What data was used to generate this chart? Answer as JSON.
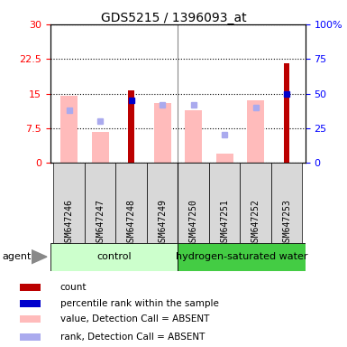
{
  "title": "GDS5215 / 1396093_at",
  "samples": [
    "GSM647246",
    "GSM647247",
    "GSM647248",
    "GSM647249",
    "GSM647250",
    "GSM647251",
    "GSM647252",
    "GSM647253"
  ],
  "ylim_left": [
    0,
    30
  ],
  "ylim_right": [
    0,
    100
  ],
  "yticks_left": [
    0,
    7.5,
    15,
    22.5,
    30
  ],
  "yticks_right": [
    0,
    25,
    50,
    75,
    100
  ],
  "ytick_labels_right": [
    "0",
    "25",
    "50",
    "75",
    "100%"
  ],
  "bar_count_values": [
    0,
    0,
    15.8,
    0,
    0,
    0,
    0,
    21.5
  ],
  "bar_count_color": "#bb0000",
  "value_absent": [
    14.5,
    6.8,
    0,
    13.0,
    11.5,
    2.0,
    13.5,
    0
  ],
  "value_absent_color": "#ffbbbb",
  "rank_absent_values": [
    11.5,
    9.0,
    0,
    12.5,
    12.5,
    6.2,
    12.0,
    0
  ],
  "rank_absent_color": "#aaaaee",
  "percentile_rank": [
    0,
    0,
    13.5,
    0,
    0,
    0,
    0,
    15.0
  ],
  "percentile_rank_color": "#0000cc",
  "control_color": "#ccffcc",
  "hw_color": "#44cc44",
  "legend_items": [
    {
      "label": "count",
      "color": "#bb0000"
    },
    {
      "label": "percentile rank within the sample",
      "color": "#0000cc"
    },
    {
      "label": "value, Detection Call = ABSENT",
      "color": "#ffbbbb"
    },
    {
      "label": "rank, Detection Call = ABSENT",
      "color": "#aaaaee"
    }
  ],
  "agent_label": "agent",
  "title_fontsize": 10,
  "tick_fontsize": 7,
  "legend_fontsize": 7.5
}
